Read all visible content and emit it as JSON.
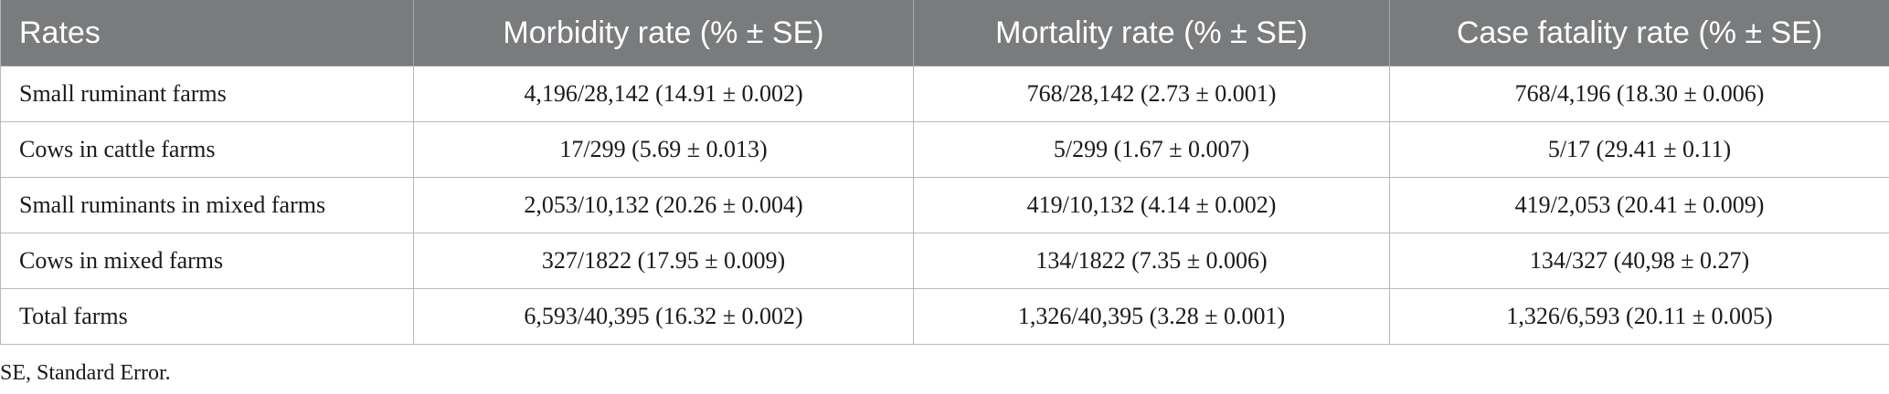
{
  "table": {
    "headers": [
      "Rates",
      "Morbidity rate (% ± SE)",
      "Mortality rate (% ± SE)",
      "Case fatality rate (% ± SE)"
    ],
    "rows": [
      [
        "Small ruminant farms",
        "4,196/28,142 (14.91 ± 0.002)",
        "768/28,142 (2.73 ± 0.001)",
        "768/4,196 (18.30 ± 0.006)"
      ],
      [
        "Cows in cattle farms",
        "17/299 (5.69 ± 0.013)",
        "5/299 (1.67 ± 0.007)",
        "5/17 (29.41 ± 0.11)"
      ],
      [
        "Small ruminants in mixed farms",
        "2,053/10,132 (20.26 ± 0.004)",
        "419/10,132 (4.14 ± 0.002)",
        "419/2,053 (20.41 ± 0.009)"
      ],
      [
        "Cows in mixed farms",
        "327/1822 (17.95 ± 0.009)",
        "134/1822 (7.35 ± 0.006)",
        "134/327 (40,98 ± 0.27)"
      ],
      [
        "Total farms",
        "6,593/40,395 (16.32 ± 0.002)",
        "1,326/40,395 (3.28 ± 0.001)",
        "1,326/6,593 (20.11 ± 0.005)"
      ]
    ]
  },
  "footnote": "SE, Standard Error."
}
